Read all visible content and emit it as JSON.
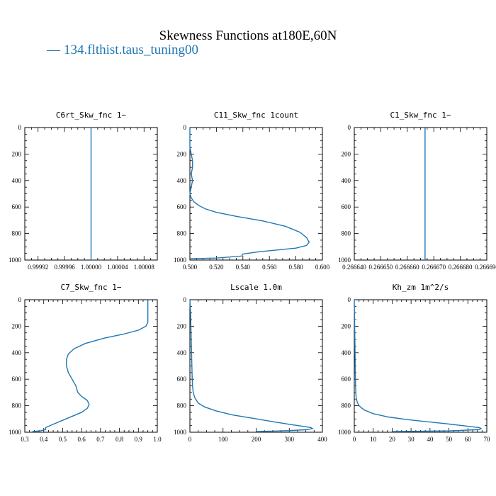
{
  "title": "Skewness Functions at180E,60N",
  "legend": {
    "prefix": "—",
    "label": "134.flthist.taus_tuning00",
    "color": "#1f77b4"
  },
  "chart_data": [
    {
      "type": "line",
      "title": "C6rt_Skw_fnc   1−",
      "xlim": [
        0.9999,
        1.0001
      ],
      "ylim": [
        1000,
        0
      ],
      "xticks": [
        0.99992,
        0.99996,
        1.0,
        1.00004,
        1.00008
      ],
      "xtick_labels": [
        "0.99992",
        "0.99996",
        "1.00000",
        "1.00004",
        "1.00008"
      ],
      "yticks": [
        0,
        200,
        400,
        600,
        800,
        1000
      ],
      "series": [
        {
          "x": [
            1.0,
            1.0
          ],
          "y": [
            0,
            1000
          ]
        }
      ]
    },
    {
      "type": "line",
      "title": "C11_Skw_fnc   1count",
      "xlim": [
        0.5,
        0.6
      ],
      "ylim": [
        1000,
        0
      ],
      "xticks": [
        0.5,
        0.52,
        0.54,
        0.56,
        0.58,
        0.6
      ],
      "xtick_labels": [
        "0.500",
        "0.520",
        "0.540",
        "0.560",
        "0.580",
        "0.600"
      ],
      "yticks": [
        0,
        200,
        400,
        600,
        800,
        1000
      ],
      "series": [
        {
          "x": [
            0.5,
            0.5,
            0.501,
            0.502,
            0.502,
            0.501,
            0.502,
            0.501,
            0.5,
            0.501,
            0.503,
            0.507,
            0.512,
            0.52,
            0.535,
            0.555,
            0.572,
            0.583,
            0.588,
            0.59,
            0.588,
            0.58,
            0.565,
            0.55,
            0.54,
            0.539,
            0.52,
            0.5
          ],
          "y": [
            0,
            150,
            200,
            250,
            300,
            350,
            400,
            450,
            500,
            530,
            560,
            590,
            615,
            640,
            670,
            705,
            745,
            790,
            830,
            865,
            890,
            910,
            925,
            940,
            955,
            970,
            985,
            990
          ]
        }
      ]
    },
    {
      "type": "line",
      "title": "C1_Skw_fnc   1−",
      "xlim": [
        0.26664,
        0.26669
      ],
      "ylim": [
        1000,
        0
      ],
      "xticks": [
        0.26664,
        0.26665,
        0.26666,
        0.26667,
        0.26668,
        0.26669
      ],
      "xtick_labels": [
        "0.266640",
        "0.266650",
        "0.266660",
        "0.266670",
        "0.266680",
        "0.266690"
      ],
      "yticks": [
        0,
        200,
        400,
        600,
        800,
        1000
      ],
      "series": [
        {
          "x": [
            0.2666667,
            0.2666667
          ],
          "y": [
            0,
            1000
          ]
        }
      ]
    },
    {
      "type": "line",
      "title": "C7_Skw_fnc   1−",
      "xlim": [
        0.3,
        1.0
      ],
      "ylim": [
        1000,
        0
      ],
      "xticks": [
        0.3,
        0.4,
        0.5,
        0.6,
        0.7,
        0.8,
        0.9,
        1.0
      ],
      "xtick_labels": [
        "0.3",
        "0.4",
        "0.5",
        "0.6",
        "0.7",
        "0.8",
        "0.9",
        "1.0"
      ],
      "yticks": [
        0,
        200,
        400,
        600,
        800,
        1000
      ],
      "series": [
        {
          "x": [
            0.95,
            0.95,
            0.94,
            0.9,
            0.82,
            0.72,
            0.62,
            0.56,
            0.53,
            0.52,
            0.52,
            0.53,
            0.55,
            0.57,
            0.58,
            0.6,
            0.63,
            0.64,
            0.63,
            0.6,
            0.55,
            0.5,
            0.45,
            0.41,
            0.41,
            0.38,
            0.34
          ],
          "y": [
            0,
            170,
            200,
            230,
            260,
            290,
            330,
            370,
            410,
            450,
            500,
            550,
            600,
            650,
            700,
            730,
            760,
            790,
            820,
            850,
            880,
            910,
            940,
            965,
            980,
            990,
            995
          ]
        }
      ]
    },
    {
      "type": "line",
      "title": "Lscale   1.0m",
      "xlim": [
        0,
        400
      ],
      "ylim": [
        1000,
        0
      ],
      "xticks": [
        0,
        100,
        200,
        300,
        400
      ],
      "xtick_labels": [
        "0",
        "100",
        "200",
        "300",
        "400"
      ],
      "yticks": [
        0,
        200,
        400,
        600,
        800,
        1000
      ],
      "series": [
        {
          "x": [
            0,
            2,
            3,
            4,
            5,
            6,
            7,
            8,
            10,
            15,
            25,
            45,
            80,
            130,
            190,
            250,
            300,
            340,
            365,
            370,
            355,
            300,
            200
          ],
          "y": [
            0,
            100,
            200,
            300,
            400,
            500,
            600,
            650,
            700,
            740,
            780,
            810,
            840,
            870,
            895,
            920,
            940,
            955,
            965,
            972,
            980,
            988,
            995
          ]
        }
      ]
    },
    {
      "type": "line",
      "title": "Kh_zm   1m^2/s",
      "xlim": [
        0,
        70
      ],
      "ylim": [
        1000,
        0
      ],
      "xticks": [
        0,
        10,
        20,
        30,
        40,
        50,
        60,
        70
      ],
      "xtick_labels": [
        "0",
        "10",
        "20",
        "30",
        "40",
        "50",
        "60",
        "70"
      ],
      "yticks": [
        0,
        200,
        400,
        600,
        800,
        1000
      ],
      "series": [
        {
          "x": [
            0,
            0.2,
            0.4,
            0.6,
            0.8,
            1.0,
            1.5,
            2.5,
            5,
            10,
            18,
            28,
            38,
            48,
            56,
            62,
            66,
            67,
            66,
            50,
            20
          ],
          "y": [
            0,
            200,
            400,
            600,
            700,
            740,
            770,
            800,
            830,
            860,
            885,
            905,
            920,
            935,
            948,
            958,
            965,
            972,
            980,
            990,
            995
          ]
        }
      ]
    }
  ]
}
